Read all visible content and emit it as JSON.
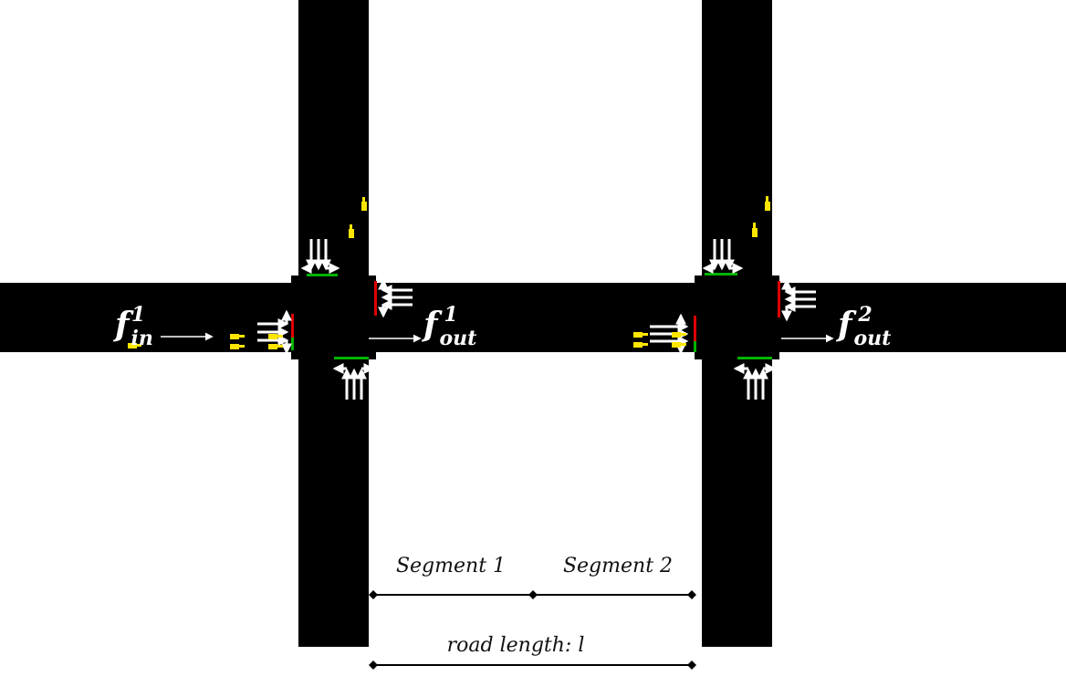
{
  "flows": {
    "in1": {
      "base": "f",
      "sub": "in",
      "sup": "1"
    },
    "out1": {
      "base": "f",
      "sub": "out",
      "sup": "1"
    },
    "out2": {
      "base": "f",
      "sub": "out",
      "sup": "2"
    }
  },
  "segments": {
    "segment1": "Segment 1",
    "segment2": "Segment 2",
    "road_length": "road length: l"
  },
  "colors": {
    "road": "#000000",
    "background": "#ffffff",
    "signal_green": "#00b400",
    "signal_red": "#e00000",
    "vehicle": "#ffe600",
    "arrow": "#ffffff",
    "dimension_line": "#000000"
  },
  "icons": {
    "lane_arrow": "lane-direction-arrow-icon",
    "vehicle": "vehicle-icon",
    "flow_arrow": "flow-arrow-icon"
  }
}
